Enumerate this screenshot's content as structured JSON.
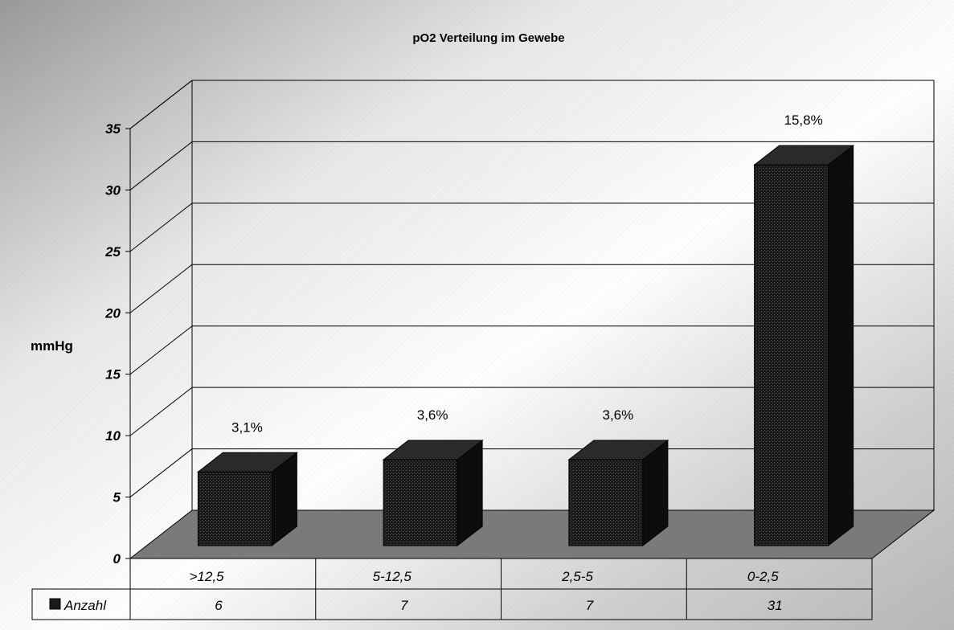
{
  "chart_data": {
    "type": "bar",
    "title": "pO2 Verteilung im Gewebe",
    "ylabel": "mmHg",
    "ylim": [
      0,
      35
    ],
    "yticks": [
      "0",
      "5",
      "10",
      "15",
      "20",
      "25",
      "30",
      "35"
    ],
    "categories": [
      ">12,5",
      "5-12,5",
      "2,5-5",
      "0-2,5"
    ],
    "series": [
      {
        "name": "Anzahl",
        "values": [
          6,
          7,
          7,
          31
        ]
      }
    ],
    "table_values": [
      "6",
      "7",
      "7",
      "31"
    ],
    "data_labels": [
      "3,1%",
      "3,6%",
      "3,6%",
      "15,8%"
    ],
    "grid": true,
    "three_d": true,
    "data_table": true,
    "colors": {
      "bar": "#1a1a1a",
      "floor": "#7a7a7a",
      "background": "#d8d8d8"
    }
  }
}
